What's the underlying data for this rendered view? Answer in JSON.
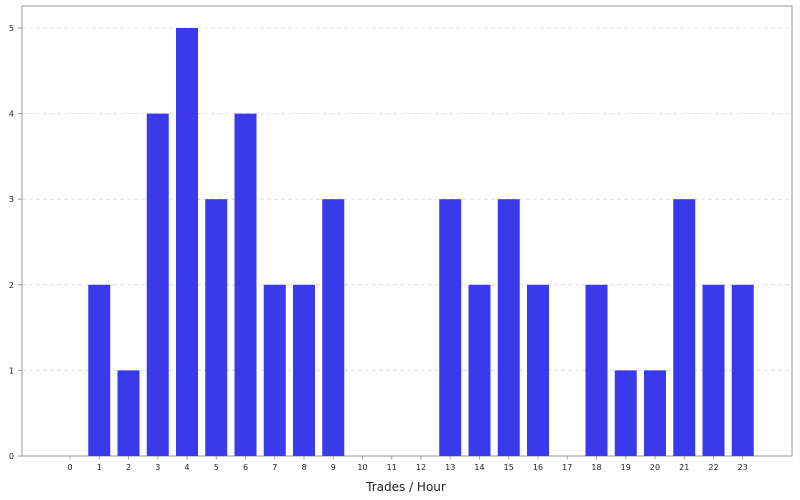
{
  "chart_data": {
    "type": "bar",
    "categories": [
      "0",
      "1",
      "2",
      "3",
      "4",
      "5",
      "6",
      "7",
      "8",
      "9",
      "10",
      "11",
      "12",
      "13",
      "14",
      "15",
      "16",
      "17",
      "18",
      "19",
      "20",
      "21",
      "22",
      "23"
    ],
    "values": [
      0,
      2,
      1,
      4,
      5,
      3,
      4,
      2,
      2,
      3,
      0,
      0,
      0,
      3,
      2,
      3,
      2,
      0,
      2,
      1,
      1,
      3,
      2,
      2
    ],
    "yticks": [
      "0",
      "1",
      "2",
      "3",
      "4",
      "5"
    ],
    "ylim": [
      0,
      5
    ],
    "xlabel": "Trades / Hour",
    "ylabel": "",
    "title": "",
    "grid": true,
    "colors": {
      "bar": "#3a3aea",
      "grid": "#dddddd",
      "frame": "#999999",
      "text": "#222222"
    }
  }
}
